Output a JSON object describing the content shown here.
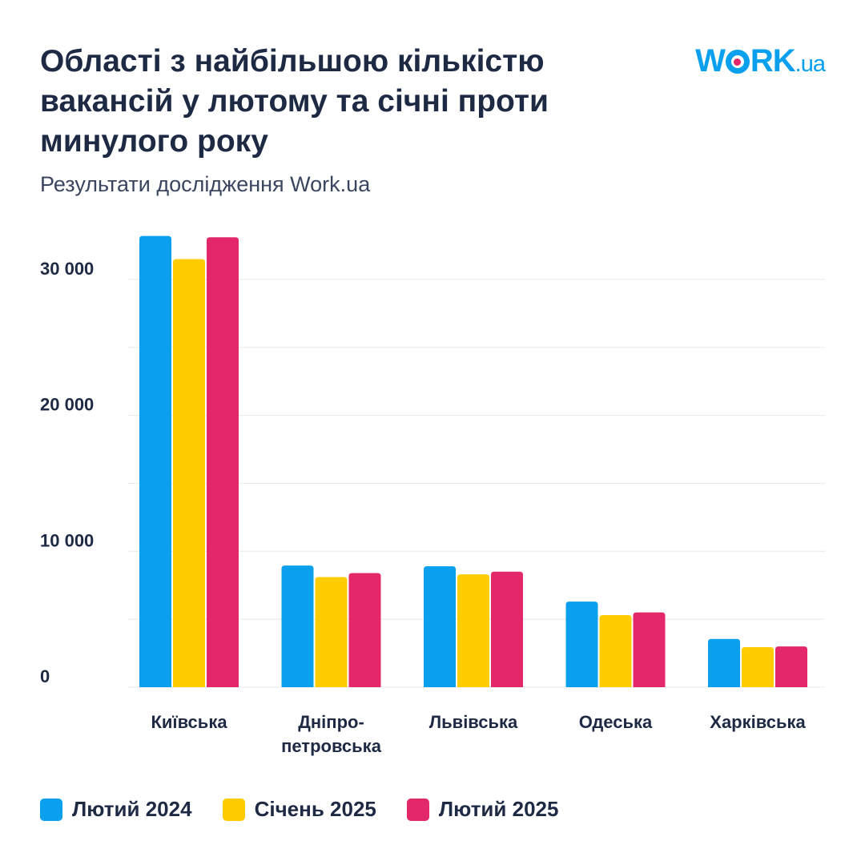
{
  "header": {
    "title": "Області з найбільшою кількістю вакансій у лютому та січні проти минулого року",
    "subtitle": "Результати дослідження Work.ua",
    "logo_main": "W",
    "logo_rest": "RK",
    "logo_suffix": ".ua"
  },
  "chart_data": {
    "type": "bar",
    "title": "Області з найбільшою кількістю вакансій у лютому та січні проти минулого року",
    "subtitle": "Результати дослідження Work.ua",
    "categories": [
      "Київська",
      "Дніпро-\nпетровська",
      "Львівська",
      "Одеська",
      "Харківська"
    ],
    "series": [
      {
        "name": "Лютий 2024",
        "color": "#0aa0ee",
        "values": [
          33200,
          8950,
          8900,
          6300,
          3550
        ]
      },
      {
        "name": "Січень 2025",
        "color": "#ffcc00",
        "values": [
          31500,
          8100,
          8300,
          5300,
          2950
        ]
      },
      {
        "name": "Лютий 2025",
        "color": "#e3286a",
        "values": [
          33100,
          8400,
          8500,
          5500,
          3000
        ]
      }
    ],
    "xlabel": "",
    "ylabel": "",
    "ylim": [
      0,
      34000
    ],
    "yticks": [
      0,
      10000,
      20000,
      30000
    ],
    "ytick_labels": [
      "0",
      "10 000",
      "20 000",
      "30 000"
    ],
    "grid_values": [
      5000,
      10000,
      15000,
      20000,
      25000,
      30000
    ],
    "grid": true,
    "legend": "bottom"
  }
}
